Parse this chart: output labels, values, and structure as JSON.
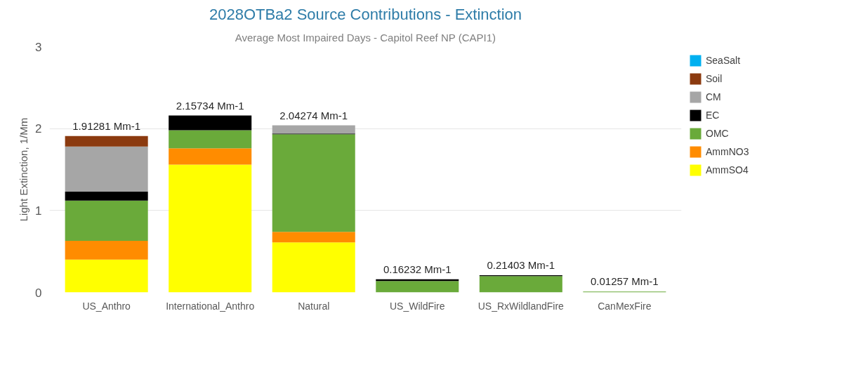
{
  "chart_data": {
    "type": "bar",
    "stacked": true,
    "title": "2028OTBa2 Source Contributions - Extinction",
    "subtitle": "Average Most Impaired Days - Capitol Reef NP (CAPI1)",
    "ylabel": "Light Extinction, 1/Mm",
    "categories": [
      "US_Anthro",
      "International_Anthro",
      "Natural",
      "US_WildFire",
      "US_RxWildlandFire",
      "CanMexFire"
    ],
    "series": [
      {
        "name": "AmmSO4",
        "color": "#ffff00",
        "values": [
          0.4,
          1.56,
          0.61,
          0,
          0,
          0
        ]
      },
      {
        "name": "AmmNO3",
        "color": "#ff8c00",
        "values": [
          0.23,
          0.2,
          0.13,
          0,
          0,
          0
        ]
      },
      {
        "name": "OMC",
        "color": "#6aaa3a",
        "values": [
          0.49,
          0.22,
          1.19,
          0.14,
          0.2,
          0.01
        ]
      },
      {
        "name": "EC",
        "color": "#000000",
        "values": [
          0.11,
          0.18,
          0.01,
          0.02,
          0.01,
          0
        ]
      },
      {
        "name": "CM",
        "color": "#a6a6a6",
        "values": [
          0.55,
          0,
          0.1,
          0,
          0,
          0
        ]
      },
      {
        "name": "Soil",
        "color": "#8b3a0f",
        "values": [
          0.13,
          0,
          0,
          0,
          0,
          0
        ]
      },
      {
        "name": "SeaSalt",
        "color": "#00b0f0",
        "values": [
          0,
          0,
          0,
          0,
          0,
          0
        ]
      }
    ],
    "totals": [
      "1.91281 Mm-1",
      "2.15734 Mm-1",
      "2.04274 Mm-1",
      "0.16232 Mm-1",
      "0.21403 Mm-1",
      "0.01257 Mm-1"
    ],
    "ylim": [
      0,
      3
    ],
    "yticks": [
      0,
      1,
      2,
      3
    ],
    "grid": "y",
    "legend": "right"
  }
}
